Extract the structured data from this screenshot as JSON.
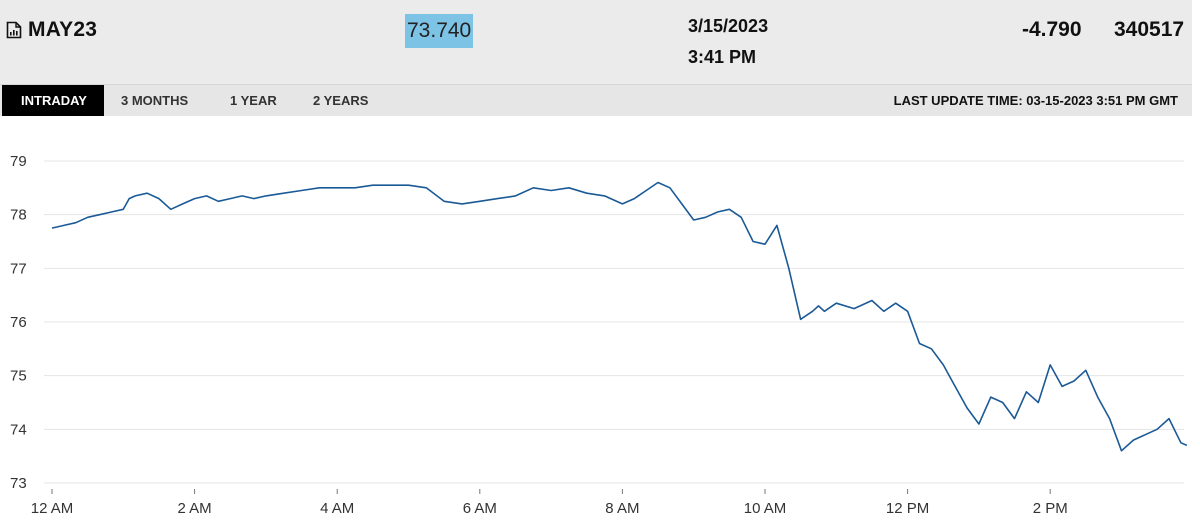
{
  "header": {
    "symbol": "MAY23",
    "symbol_icon": "document-chart-icon",
    "last_price": "73.740",
    "date": "3/15/2023",
    "time": "3:41 PM",
    "change": "-4.790",
    "volume": "340517"
  },
  "tabs": [
    {
      "label": "INTRADAY",
      "active": true
    },
    {
      "label": "3 MONTHS",
      "active": false
    },
    {
      "label": "1 YEAR",
      "active": false
    },
    {
      "label": "2 YEARS",
      "active": false
    }
  ],
  "last_update": "LAST UPDATE TIME: 03-15-2023 3:51 PM GMT",
  "colors": {
    "header_bg": "#ebebeb",
    "price_highlight": "#7dc3e6",
    "active_tab_bg": "#000000",
    "series": "#1b5a96"
  },
  "chart_data": {
    "type": "line",
    "title": "",
    "xlabel": "",
    "ylabel": "",
    "ylim": [
      73,
      79
    ],
    "xlim": [
      "0:00",
      "15:55"
    ],
    "yticks": [
      73,
      74,
      75,
      76,
      77,
      78,
      79
    ],
    "xticks": [
      "12 AM",
      "2 AM",
      "4 AM",
      "6 AM",
      "8 AM",
      "10 AM",
      "12 PM",
      "2 PM"
    ],
    "xtick_hours": [
      0,
      2,
      4,
      6,
      8,
      10,
      12,
      14
    ],
    "grid": "horizontal",
    "legend": "none",
    "x": [
      "0:00",
      "0:10",
      "0:20",
      "0:30",
      "0:40",
      "0:50",
      "1:00",
      "1:05",
      "1:10",
      "1:20",
      "1:30",
      "1:40",
      "1:50",
      "2:00",
      "2:10",
      "2:20",
      "2:30",
      "2:40",
      "2:50",
      "3:00",
      "3:15",
      "3:30",
      "3:45",
      "4:00",
      "4:15",
      "4:30",
      "4:45",
      "5:00",
      "5:15",
      "5:30",
      "5:45",
      "6:00",
      "6:15",
      "6:30",
      "6:45",
      "7:00",
      "7:15",
      "7:30",
      "7:45",
      "8:00",
      "8:10",
      "8:20",
      "8:30",
      "8:40",
      "8:50",
      "9:00",
      "9:10",
      "9:20",
      "9:30",
      "9:40",
      "9:50",
      "10:00",
      "10:10",
      "10:20",
      "10:30",
      "10:40",
      "10:45",
      "10:50",
      "11:00",
      "11:15",
      "11:30",
      "11:40",
      "11:50",
      "12:00",
      "12:10",
      "12:20",
      "12:30",
      "12:40",
      "12:50",
      "13:00",
      "13:10",
      "13:20",
      "13:30",
      "13:40",
      "13:50",
      "14:00",
      "14:10",
      "14:20",
      "14:30",
      "14:40",
      "14:50",
      "15:00",
      "15:10",
      "15:20",
      "15:30",
      "15:40",
      "15:50",
      "15:55"
    ],
    "y": [
      77.75,
      77.8,
      77.85,
      77.95,
      78.0,
      78.05,
      78.1,
      78.3,
      78.35,
      78.4,
      78.3,
      78.1,
      78.2,
      78.3,
      78.35,
      78.25,
      78.3,
      78.35,
      78.3,
      78.35,
      78.4,
      78.45,
      78.5,
      78.5,
      78.5,
      78.55,
      78.55,
      78.55,
      78.5,
      78.25,
      78.2,
      78.25,
      78.3,
      78.35,
      78.5,
      78.45,
      78.5,
      78.4,
      78.35,
      78.2,
      78.3,
      78.45,
      78.6,
      78.5,
      78.2,
      77.9,
      77.95,
      78.05,
      78.1,
      77.95,
      77.5,
      77.45,
      77.8,
      77.0,
      76.05,
      76.2,
      76.3,
      76.2,
      76.35,
      76.25,
      76.4,
      76.2,
      76.35,
      76.2,
      75.6,
      75.5,
      75.2,
      74.8,
      74.4,
      74.1,
      74.6,
      74.5,
      74.2,
      74.7,
      74.5,
      75.2,
      74.8,
      74.9,
      75.1,
      74.6,
      74.2,
      73.6,
      73.8,
      73.9,
      74.0,
      74.2,
      73.75,
      73.7
    ]
  }
}
